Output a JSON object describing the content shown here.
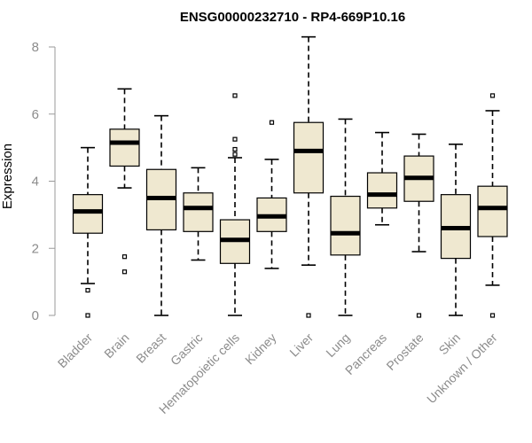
{
  "chart_data": {
    "type": "boxplot",
    "title": "ENSG00000232710 - RP4-669P10.16",
    "ylabel": "Expression",
    "xlabel": "",
    "ylim": [
      0,
      8.3
    ],
    "yticks": [
      0,
      2,
      4,
      6,
      8
    ],
    "categories": [
      "Bladder",
      "Brain",
      "Breast",
      "Gastric",
      "Hematopoietic cells",
      "Kidney",
      "Liver",
      "Lung",
      "Pancreas",
      "Prostate",
      "Skin",
      "Unknown / Other"
    ],
    "boxes": [
      {
        "q1": 2.45,
        "median": 3.1,
        "q3": 3.6,
        "whisker_low": 0.95,
        "whisker_high": 5.0,
        "outliers": [
          0.75,
          0.0
        ]
      },
      {
        "q1": 4.45,
        "median": 5.15,
        "q3": 5.55,
        "whisker_low": 3.8,
        "whisker_high": 6.75,
        "outliers": [
          1.75,
          1.3
        ]
      },
      {
        "q1": 2.55,
        "median": 3.5,
        "q3": 4.35,
        "whisker_low": 0.0,
        "whisker_high": 5.95,
        "outliers": []
      },
      {
        "q1": 2.5,
        "median": 3.2,
        "q3": 3.65,
        "whisker_low": 1.65,
        "whisker_high": 4.4,
        "outliers": []
      },
      {
        "q1": 1.55,
        "median": 2.25,
        "q3": 2.85,
        "whisker_low": 0.0,
        "whisker_high": 4.7,
        "outliers": [
          4.8,
          4.95,
          5.25,
          6.55
        ]
      },
      {
        "q1": 2.5,
        "median": 2.95,
        "q3": 3.5,
        "whisker_low": 1.4,
        "whisker_high": 4.65,
        "outliers": [
          5.75
        ]
      },
      {
        "q1": 3.65,
        "median": 4.9,
        "q3": 5.75,
        "whisker_low": 1.5,
        "whisker_high": 8.3,
        "outliers": [
          0.0
        ]
      },
      {
        "q1": 1.8,
        "median": 2.45,
        "q3": 3.55,
        "whisker_low": 0.0,
        "whisker_high": 5.85,
        "outliers": []
      },
      {
        "q1": 3.2,
        "median": 3.6,
        "q3": 4.25,
        "whisker_low": 2.7,
        "whisker_high": 5.45,
        "outliers": []
      },
      {
        "q1": 3.4,
        "median": 4.1,
        "q3": 4.75,
        "whisker_low": 1.9,
        "whisker_high": 5.4,
        "outliers": [
          0.0
        ]
      },
      {
        "q1": 1.7,
        "median": 2.6,
        "q3": 3.6,
        "whisker_low": 0.0,
        "whisker_high": 5.1,
        "outliers": []
      },
      {
        "q1": 2.35,
        "median": 3.2,
        "q3": 3.85,
        "whisker_low": 0.9,
        "whisker_high": 6.1,
        "outliers": [
          6.55,
          0.0
        ]
      }
    ],
    "colors": {
      "box_fill": "#efe8d0",
      "box_stroke": "#000000",
      "axis": "#9a9a9a",
      "label": "#8c8c8c"
    }
  }
}
